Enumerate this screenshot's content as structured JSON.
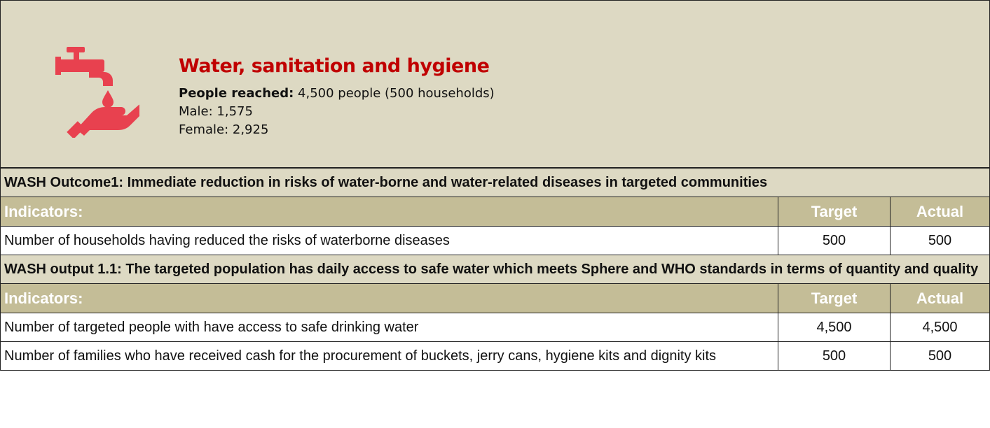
{
  "header": {
    "title": "Water, sanitation and hygiene",
    "reached_label": "People reached:",
    "reached_value": "4,500 people (500 households)",
    "male": "Male: 1,575",
    "female": "Female: 2,925"
  },
  "sections": [
    {
      "heading": "WASH Outcome1: Immediate reduction in risks of water-borne and water-related diseases in targeted communities",
      "columns": [
        "Indicators:",
        "Target",
        "Actual"
      ],
      "rows": [
        [
          "Number of households having reduced the risks of waterborne diseases",
          "500",
          "500"
        ]
      ]
    },
    {
      "heading": "WASH output 1.1: The targeted population has daily access to safe water which meets Sphere and WHO standards in terms of quantity and quality",
      "columns": [
        "Indicators:",
        "Target",
        "Actual"
      ],
      "rows": [
        [
          "Number of targeted people with have access to safe drinking water",
          "4,500",
          "4,500"
        ],
        [
          "Number of families who have received cash for the procurement of buckets, jerry cans, hygiene kits and dignity kits",
          "500",
          "500"
        ]
      ]
    }
  ]
}
